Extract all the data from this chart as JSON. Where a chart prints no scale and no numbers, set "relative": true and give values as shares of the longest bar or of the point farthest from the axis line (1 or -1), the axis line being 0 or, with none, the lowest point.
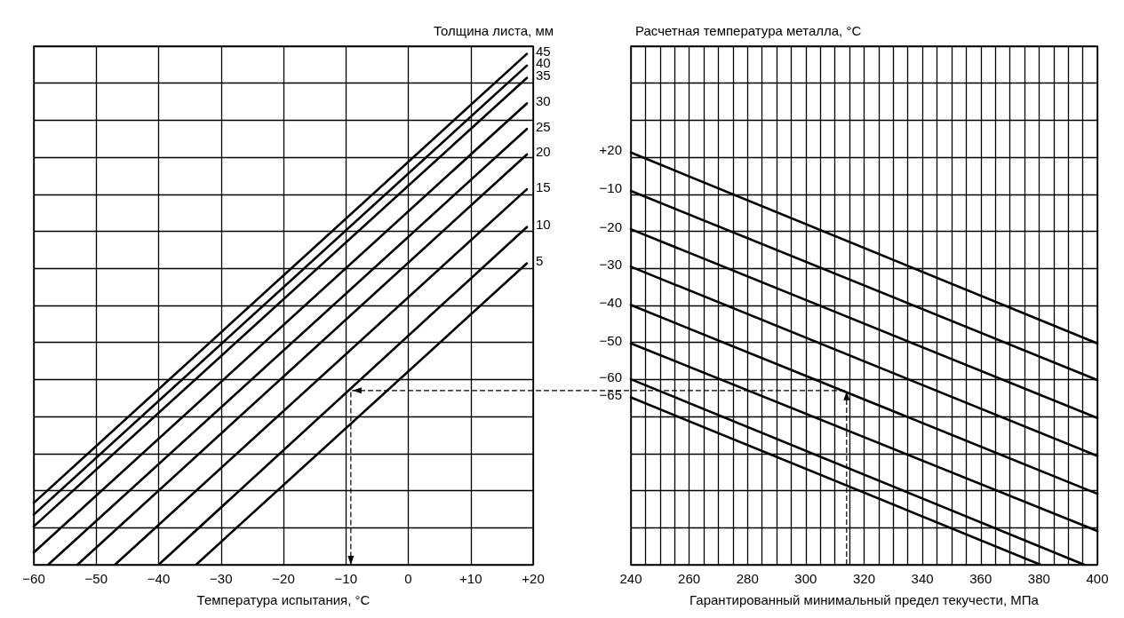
{
  "chart_data": [
    {
      "type": "line",
      "relative": true,
      "xlabel": "Температура испытания, °C",
      "legend_title": "Толщина листа, мм",
      "xlim": [
        -60,
        20
      ],
      "xticks": [
        {
          "value": -60,
          "label": "−60"
        },
        {
          "value": -50,
          "label": "−50"
        },
        {
          "value": -40,
          "label": "−40"
        },
        {
          "value": -30,
          "label": "−30"
        },
        {
          "value": -20,
          "label": "−20"
        },
        {
          "value": -10,
          "label": "−10"
        },
        0,
        {
          "value": 10,
          "label": "+10"
        },
        {
          "value": 20,
          "label": "+20"
        }
      ],
      "tick_labels": "x",
      "grid": true,
      "marker": "none",
      "line_style": "solid",
      "series": [
        {
          "name": "45",
          "color": "#000000",
          "x": [
            -60,
            19
          ],
          "values": [
            0.121,
            1
          ]
        },
        {
          "name": "40",
          "color": "#000000",
          "x": [
            -60,
            19
          ],
          "values": [
            0.098,
            0.977
          ]
        },
        {
          "name": "35",
          "color": "#000000",
          "x": [
            -60,
            19
          ],
          "values": [
            0.075,
            0.953
          ]
        },
        {
          "name": "30",
          "color": "#000000",
          "x": [
            -60,
            19
          ],
          "values": [
            0.024,
            0.903
          ]
        },
        {
          "name": "25",
          "color": "#000000",
          "x": [
            -57.7,
            19
          ],
          "values": [
            0,
            0.853
          ]
        },
        {
          "name": "20",
          "color": "#000000",
          "x": [
            -53,
            19
          ],
          "values": [
            0,
            0.803
          ]
        },
        {
          "name": "15",
          "color": "#000000",
          "x": [
            -47,
            19
          ],
          "values": [
            0,
            0.735
          ]
        },
        {
          "name": "10",
          "color": "#000000",
          "x": [
            -40,
            19
          ],
          "values": [
            0,
            0.661
          ]
        },
        {
          "name": "5",
          "color": "#000000",
          "x": [
            -34,
            19
          ],
          "values": [
            0,
            0.59
          ]
        }
      ]
    },
    {
      "type": "line",
      "relative": true,
      "xlabel": "Гарантированный минимальный предел текучести, МПа",
      "legend_title": "Расчетная температура металла, °C",
      "xlim": [
        240,
        400
      ],
      "xticks": [
        240,
        {
          "value": 245,
          "label": null
        },
        {
          "value": 250,
          "label": null
        },
        {
          "value": 255,
          "label": null
        },
        260,
        {
          "value": 265,
          "label": null
        },
        {
          "value": 270,
          "label": null
        },
        {
          "value": 275,
          "label": null
        },
        280,
        {
          "value": 285,
          "label": null
        },
        {
          "value": 290,
          "label": null
        },
        {
          "value": 295,
          "label": null
        },
        300,
        {
          "value": 305,
          "label": null
        },
        {
          "value": 310,
          "label": null
        },
        {
          "value": 315,
          "label": null
        },
        320,
        {
          "value": 325,
          "label": null
        },
        {
          "value": 330,
          "label": null
        },
        {
          "value": 335,
          "label": null
        },
        340,
        {
          "value": 345,
          "label": null
        },
        {
          "value": 350,
          "label": null
        },
        {
          "value": 355,
          "label": null
        },
        360,
        {
          "value": 365,
          "label": null
        },
        {
          "value": 370,
          "label": null
        },
        {
          "value": 375,
          "label": null
        },
        380,
        {
          "value": 385,
          "label": null
        },
        {
          "value": 390,
          "label": null
        },
        {
          "value": 395,
          "label": null
        },
        400
      ],
      "tick_labels": "x",
      "grid": true,
      "marker": "none",
      "line_style": "solid",
      "series": [
        {
          "name": "+20",
          "color": "#000000",
          "x": [
            240,
            400
          ],
          "values": [
            1,
            0.537
          ]
        },
        {
          "name": "−10",
          "color": "#000000",
          "x": [
            240,
            400
          ],
          "values": [
            0.907,
            0.448
          ]
        },
        {
          "name": "−20",
          "color": "#000000",
          "x": [
            240,
            400
          ],
          "values": [
            0.814,
            0.356
          ]
        },
        {
          "name": "−30",
          "color": "#000000",
          "x": [
            240,
            400
          ],
          "values": [
            0.723,
            0.264
          ]
        },
        {
          "name": "−40",
          "color": "#000000",
          "x": [
            240,
            400
          ],
          "values": [
            0.63,
            0.172
          ]
        },
        {
          "name": "−50",
          "color": "#000000",
          "x": [
            240,
            400
          ],
          "values": [
            0.537,
            0.082
          ]
        },
        {
          "name": "−60",
          "color": "#000000",
          "x": [
            240,
            395.5
          ],
          "values": [
            0.45,
            0
          ]
        },
        {
          "name": "−65",
          "color": "#000000",
          "x": [
            240,
            380.5
          ],
          "values": [
            0.406,
            0
          ]
        }
      ]
    }
  ]
}
